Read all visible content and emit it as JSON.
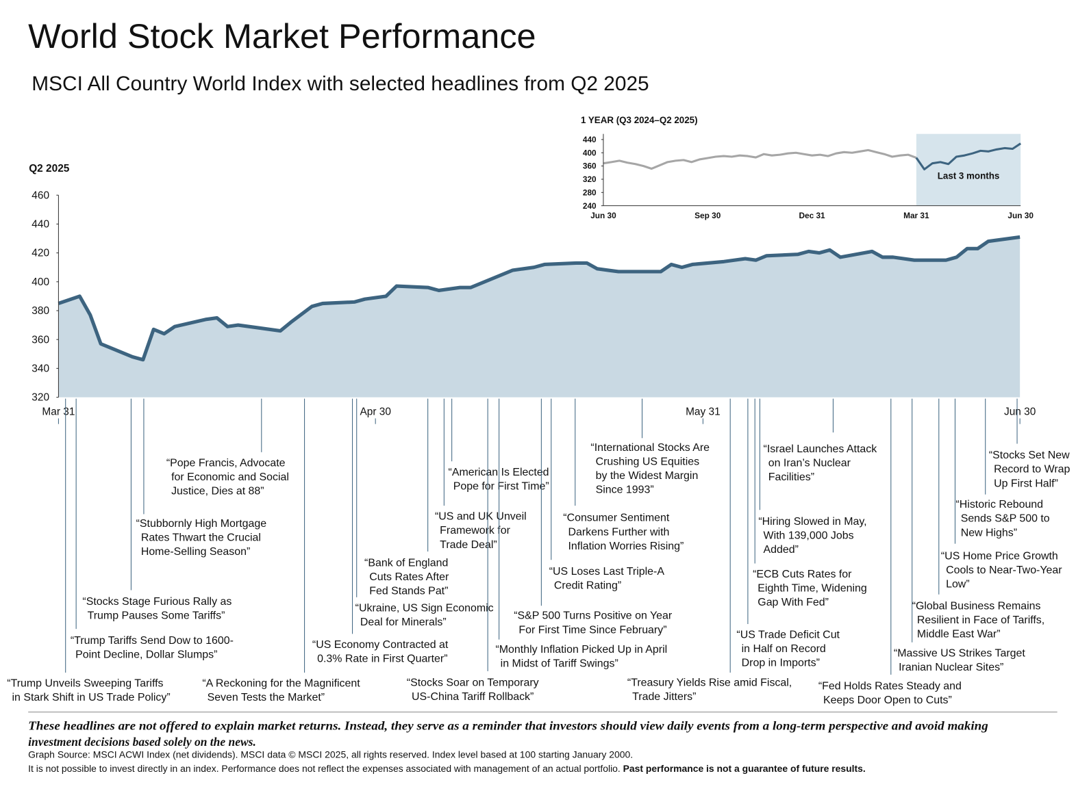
{
  "chart_data": [
    {
      "type": "area",
      "title": "World Stock Market Performance",
      "subtitle": "MSCI All Country World Index with selected headlines from Q2 2025",
      "y_label": "Q2 2025",
      "color": "#3d6480",
      "fill": "#c9d9e3",
      "x": [
        "Mar 31",
        "Apr 2",
        "Apr 3",
        "Apr 4",
        "Apr 7",
        "Apr 8",
        "Apr 9",
        "Apr 10",
        "Apr 11",
        "Apr 14",
        "Apr 15",
        "Apr 16",
        "Apr 17",
        "Apr 21",
        "Apr 22",
        "Apr 24",
        "Apr 25",
        "Apr 28",
        "Apr 29",
        "May 1",
        "May 2",
        "May 5",
        "May 6",
        "May 8",
        "May 9",
        "May 13",
        "May 15",
        "May 16",
        "May 19",
        "May 20",
        "May 21",
        "May 23",
        "May 27",
        "May 28",
        "May 29",
        "May 30",
        "Jun 2",
        "Jun 4",
        "Jun 5",
        "Jun 6",
        "Jun 9",
        "Jun 10",
        "Jun 11",
        "Jun 12",
        "Jun 13",
        "Jun 16",
        "Jun 17",
        "Jun 18",
        "Jun 20",
        "Jun 23",
        "Jun 24",
        "Jun 25",
        "Jun 26",
        "Jun 27",
        "Jun 30"
      ],
      "values": [
        385,
        390,
        377,
        357,
        348,
        346,
        367,
        364,
        369,
        374,
        375,
        369,
        370,
        366,
        372,
        383,
        385,
        386,
        388,
        390,
        397,
        396,
        394,
        396,
        396,
        408,
        410,
        412,
        413,
        413,
        409,
        407,
        407,
        412,
        410,
        412,
        414,
        416,
        415,
        418,
        419,
        421,
        420,
        422,
        417,
        421,
        417,
        417,
        415,
        415,
        417,
        423,
        423,
        428,
        431
      ],
      "ylim": [
        320,
        460
      ],
      "yticks": [
        320,
        340,
        360,
        380,
        400,
        420,
        440,
        460
      ],
      "xticks": [
        "Mar 31",
        "Apr 30",
        "May 31",
        "Jun 30"
      ],
      "annotations": [
        {
          "lines": [
            "“Trump Unveils Sweeping Tariffs",
            "in Stark Shift in US Trade Policy”"
          ]
        },
        {
          "lines": [
            "“Trump Tariffs Send Dow to 1600-",
            "Point Decline, Dollar Slumps”"
          ]
        },
        {
          "lines": [
            "“Stocks Stage Furious Rally as",
            "Trump Pauses Some Tariffs”"
          ]
        },
        {
          "lines": [
            "“Stubbornly High Mortgage",
            "Rates Thwart the Crucial",
            "Home-Selling Season”"
          ]
        },
        {
          "lines": [
            "“Pope Francis, Advocate",
            "for Economic and Social",
            "Justice, Dies at 88”"
          ]
        },
        {
          "lines": [
            "“A Reckoning for the Magnificent",
            "Seven Tests the Market”"
          ]
        },
        {
          "lines": [
            "“US Economy Contracted at",
            "0.3% Rate in First Quarter”"
          ]
        },
        {
          "lines": [
            "“Ukraine, US Sign Economic",
            "Deal for Minerals”"
          ]
        },
        {
          "lines": [
            "“Bank of England",
            "Cuts Rates After",
            "Fed Stands Pat”"
          ]
        },
        {
          "lines": [
            "“US and UK Unveil",
            "Framework for",
            "Trade Deal”"
          ]
        },
        {
          "lines": [
            "“American Is Elected",
            "Pope for First Time”"
          ]
        },
        {
          "lines": [
            "“Stocks Soar on Temporary",
            "US-China Tariff Rollback”"
          ]
        },
        {
          "lines": [
            "“Monthly Inflation Picked Up in April",
            "in Midst of Tariff Swings”"
          ]
        },
        {
          "lines": [
            "“S&P 500 Turns Positive on Year",
            "For First Time Since February”"
          ]
        },
        {
          "lines": [
            "“US Loses Last Triple-A",
            "Credit Rating”"
          ]
        },
        {
          "lines": [
            "“Consumer Sentiment",
            "Darkens Further with",
            "Inflation Worries Rising”"
          ]
        },
        {
          "lines": [
            "“International Stocks Are",
            "Crushing US Equities",
            "by the Widest Margin",
            "Since 1993”"
          ]
        },
        {
          "lines": [
            "“Treasury Yields Rise amid Fiscal,",
            "Trade Jitters”"
          ]
        },
        {
          "lines": [
            "“US Trade Deficit Cut",
            "in Half on Record",
            "Drop in Imports”"
          ]
        },
        {
          "lines": [
            "“ECB Cuts Rates for",
            "Eighth Time, Widening",
            "Gap With Fed”"
          ]
        },
        {
          "lines": [
            "“Hiring Slowed in May,",
            "With 139,000 Jobs",
            "Added”"
          ]
        },
        {
          "lines": [
            "“Israel Launches Attack",
            "on Iran’s Nuclear",
            "Facilities”"
          ]
        },
        {
          "lines": [
            "“Fed Holds Rates Steady and",
            "Keeps Door Open to Cuts”"
          ]
        },
        {
          "lines": [
            "“Massive US Strikes Target",
            "Iranian Nuclear Sites”"
          ]
        },
        {
          "lines": [
            "“Global Business Remains",
            "Resilient in Face of Tariffs,",
            "Middle East War”"
          ]
        },
        {
          "lines": [
            "“US Home Price Growth",
            "Cools to Near-Two-Year",
            "Low”"
          ]
        },
        {
          "lines": [
            "“Historic Rebound",
            "Sends S&P 500 to",
            "New Highs”"
          ]
        },
        {
          "lines": [
            "“Stocks Set New",
            "Record to Wrap",
            "Up First Half”"
          ]
        }
      ]
    },
    {
      "type": "line",
      "title": "1 YEAR (Q3 2024–Q2 2025)",
      "annotation": "Last 3 months",
      "shade": "#d6e4ec",
      "categories": [
        "Jun 30",
        null,
        null,
        null,
        null,
        null,
        null,
        null,
        null,
        null,
        null,
        null,
        null,
        "Sep 30",
        null,
        null,
        null,
        null,
        null,
        null,
        null,
        null,
        null,
        null,
        null,
        null,
        "Dec 31",
        null,
        null,
        null,
        null,
        null,
        null,
        null,
        null,
        null,
        null,
        null,
        null,
        "Mar 31",
        null,
        null,
        null,
        null,
        null,
        null,
        null,
        null,
        null,
        null,
        null,
        null,
        "Jun 30"
      ],
      "series": [
        {
          "color": "#a6a6a6",
          "values": [
            368,
            372,
            376,
            370,
            366,
            360,
            352,
            362,
            372,
            376,
            378,
            372,
            380,
            384,
            388,
            390,
            388,
            392,
            390,
            386,
            396,
            392,
            394,
            398,
            400,
            396,
            392,
            394,
            390,
            398,
            402,
            400,
            404,
            408,
            402,
            396,
            388,
            392,
            394,
            385,
            null,
            null,
            null,
            null,
            null,
            null,
            null,
            null,
            null,
            null,
            null,
            null,
            null
          ]
        },
        {
          "color": "#3d6480",
          "highlight": true,
          "values": [
            null,
            null,
            null,
            null,
            null,
            null,
            null,
            null,
            null,
            null,
            null,
            null,
            null,
            null,
            null,
            null,
            null,
            null,
            null,
            null,
            null,
            null,
            null,
            null,
            null,
            null,
            null,
            null,
            null,
            null,
            null,
            null,
            null,
            null,
            null,
            null,
            null,
            null,
            null,
            385,
            350,
            368,
            372,
            366,
            388,
            392,
            398,
            406,
            404,
            410,
            414,
            412,
            428
          ]
        }
      ],
      "ylim": [
        240,
        440
      ],
      "yticks": [
        240,
        280,
        320,
        360,
        400,
        440
      ]
    }
  ],
  "footer": {
    "disclaimer": [
      "These headlines are not offered to explain market returns. Instead, they serve as a reminder that investors should view daily events from a long-term perspective and avoid making",
      "investment decisions based solely on the news."
    ],
    "source": "Graph Source: MSCI ACWI Index (net dividends). MSCI data © MSCI 2025, all rights reserved. Index level based at 100 starting January 2000.",
    "note": "It is not possible to invest directly in an index. Performance does not reflect the expenses associated with management of an actual portfolio.",
    "note_bold": "Past performance is not a guarantee of future results."
  }
}
